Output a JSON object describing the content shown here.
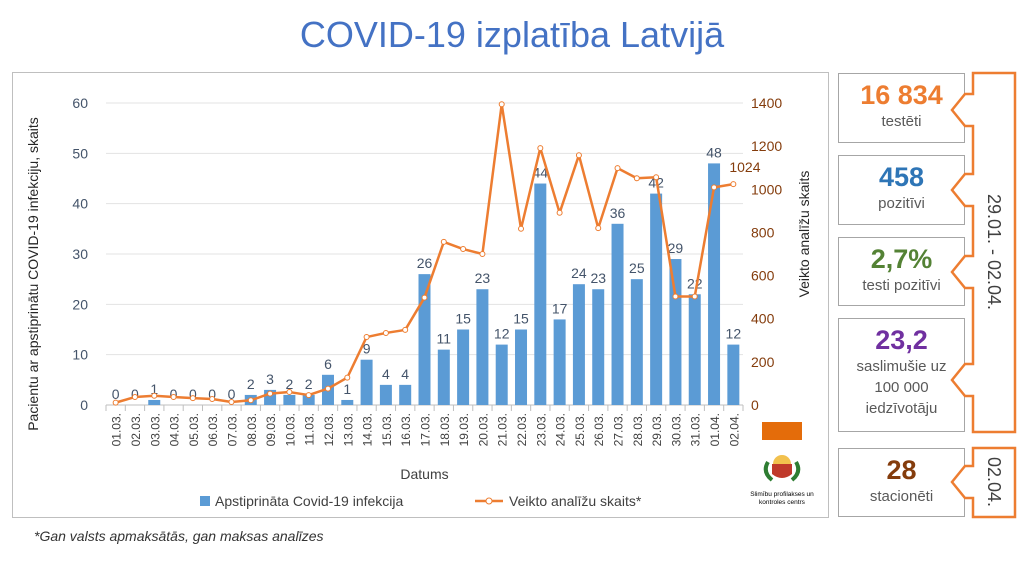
{
  "title": "COVID-19 izplatība Latvijā",
  "footnote": "*Gan valsts apmaksātās, gan maksas analīzes",
  "colors": {
    "bars": "#5B9BD5",
    "line": "#ED7D31",
    "title": "#4472C4",
    "right_axis": "#843C0C"
  },
  "logo": {
    "text": "Slimību profilakses un kontroles centrs",
    "flag_color": "#E46C0A"
  },
  "stats": [
    {
      "value": "16 834",
      "label": "testēti",
      "color": "#ED7D31"
    },
    {
      "value": "458",
      "label": "pozitīvi",
      "color": "#2E75B6"
    },
    {
      "value": "2,7%",
      "label": "testi pozitīvi",
      "color": "#548235"
    },
    {
      "value": "23,2",
      "label": "saslimušie uz 100 000 iedzīvotāju",
      "color": "#7030A0"
    },
    {
      "value": "28",
      "label": "stacionēti",
      "color": "#843C0C"
    }
  ],
  "periods": {
    "main": "29.01. - 02.04.",
    "single": "02.04."
  },
  "chart_data": {
    "type": "bar+line",
    "xlabel": "Datums",
    "ylabel": "Pacientu ar apstiprinātu COVID-19 infekciju, skaits",
    "y2label": "Veikto analīžu skaits",
    "ylim": [
      0,
      60
    ],
    "y2lim": [
      0,
      1400
    ],
    "yticks": [
      0,
      10,
      20,
      30,
      40,
      50,
      60
    ],
    "y2ticks": [
      0,
      200,
      400,
      600,
      800,
      1000,
      1200,
      1400
    ],
    "grid": true,
    "legend_placement": "bottom",
    "categories": [
      "01.03.",
      "02.03.",
      "03.03.",
      "04.03.",
      "05.03.",
      "06.03.",
      "07.03.",
      "08.03.",
      "09.03.",
      "10.03.",
      "11.03.",
      "12.03.",
      "13.03.",
      "14.03.",
      "15.03.",
      "16.03.",
      "17.03.",
      "18.03.",
      "19.03.",
      "20.03.",
      "21.03.",
      "22.03.",
      "23.03.",
      "24.03.",
      "25.03.",
      "26.03.",
      "27.03.",
      "28.03.",
      "29.03.",
      "30.03.",
      "31.03.",
      "01.04.",
      "02.04."
    ],
    "series": [
      {
        "name": "Apstiprināta Covid-19 infekcija",
        "type": "bar",
        "axis": "left",
        "values": [
          0,
          0,
          1,
          0,
          0,
          0,
          0,
          2,
          3,
          2,
          2,
          6,
          1,
          9,
          4,
          4,
          26,
          11,
          15,
          23,
          12,
          15,
          44,
          17,
          24,
          23,
          36,
          25,
          42,
          29,
          22,
          48,
          12
        ]
      },
      {
        "name": "Veikto analīžu skaits*",
        "type": "line",
        "axis": "right",
        "values": [
          11,
          37,
          43,
          37,
          32,
          28,
          14,
          22,
          53,
          60,
          46,
          76,
          127,
          315,
          334,
          348,
          498,
          756,
          723,
          700,
          1394,
          817,
          1191,
          891,
          1158,
          820,
          1098,
          1051,
          1056,
          503,
          503,
          1009,
          1024
        ],
        "labeled_point": {
          "category": "02.04.",
          "label": "1024"
        }
      }
    ]
  }
}
